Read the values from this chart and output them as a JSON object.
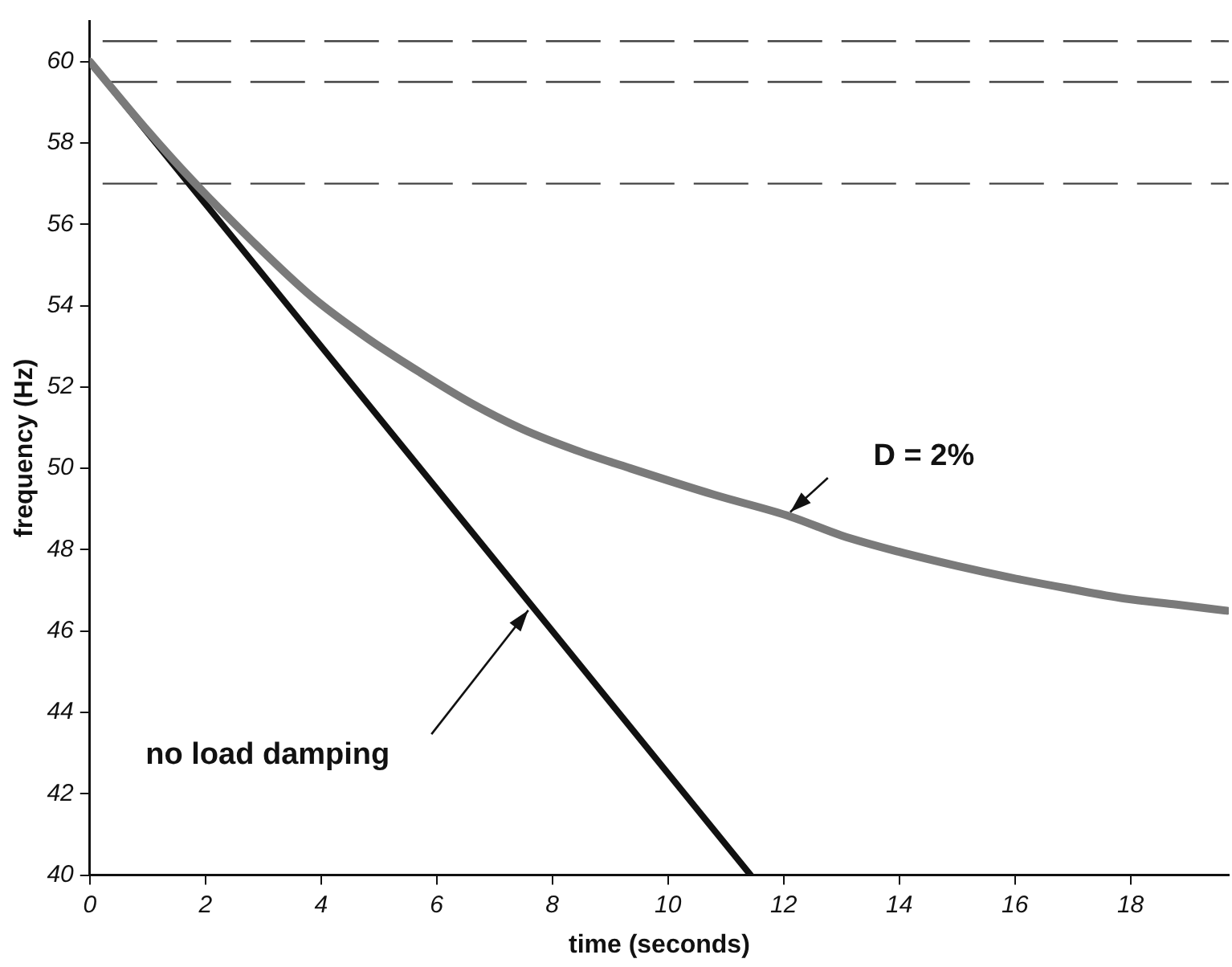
{
  "chart_data": {
    "type": "line",
    "xlabel": "time (seconds)",
    "ylabel": "frequency (Hz)",
    "xlim": [
      0,
      19.7
    ],
    "xticks": [
      0,
      2,
      4,
      6,
      8,
      10,
      12,
      14,
      16,
      18
    ],
    "ylim": [
      40,
      61
    ],
    "yticks": [
      40,
      42,
      44,
      46,
      48,
      50,
      52,
      54,
      56,
      58,
      60
    ],
    "grid": false,
    "legend": false,
    "marker": "none",
    "series": [
      {
        "color": "#7a7a7a",
        "x": [
          0,
          1,
          1.74,
          2.8,
          3.84,
          4.8,
          5.7,
          6.6,
          7.49,
          8.4,
          9.35,
          10.8,
          12.13,
          13.0,
          13.99,
          15.0,
          15.94,
          16.9,
          17.9,
          18.8,
          19.67
        ],
        "values": [
          60,
          58.3,
          57.13,
          55.6,
          54.22,
          53.2,
          52.37,
          51.6,
          50.96,
          50.45,
          50.0,
          49.35,
          48.81,
          48.35,
          47.95,
          47.6,
          47.31,
          47.05,
          46.8,
          46.65,
          46.5
        ]
      },
      {
        "color": "#111111",
        "x": [
          0,
          11.43
        ],
        "values": [
          60,
          40
        ]
      }
    ],
    "ref_lines": [
      {
        "axis": "y",
        "value": 60.5,
        "color": "#444444",
        "line_style": "dashed"
      },
      {
        "axis": "y",
        "value": 59.5,
        "color": "#444444",
        "line_style": "dashed"
      },
      {
        "axis": "y",
        "value": 57,
        "color": "#444444",
        "line_style": "dashed"
      }
    ],
    "annotations": [
      "D = 2%",
      "no load damping"
    ]
  }
}
